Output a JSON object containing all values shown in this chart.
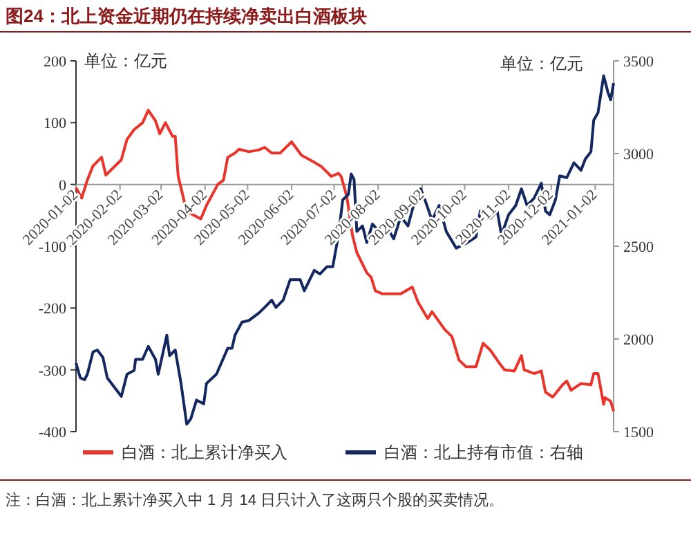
{
  "chart_data": {
    "type": "line",
    "title": "图24：北上资金近期仍在持续净卖出白酒板块",
    "annotations": [
      "单位：亿元",
      "单位：亿元",
      "注：白酒：北上累计净买入中 1 月 14 日只计入了这两只个股的买卖情况。"
    ],
    "xlim": [
      "2020-01-02",
      "2021-01-15"
    ],
    "xticks": [
      "2020-01-02",
      "2020-02-02",
      "2020-03-02",
      "2020-04-02",
      "2020-05-02",
      "2020-06-02",
      "2020-07-02",
      "2020-08-02",
      "2020-09-02",
      "2020-10-02",
      "2020-11-02",
      "2020-12-02",
      "2021-01-02"
    ],
    "ylim": [
      -400,
      200
    ],
    "yticks": [
      -400,
      -300,
      -200,
      -100,
      0,
      100,
      200
    ],
    "y2lim": [
      1500,
      3500
    ],
    "y2ticks": [
      1500,
      2000,
      2500,
      3000,
      3500
    ],
    "grid": false,
    "legend": "bottom",
    "line_style": "solid",
    "series": [
      {
        "name": "白酒：北上累计净买入",
        "color": "#e8342a",
        "x": [
          "2020-01-02",
          "2020-01-06",
          "2020-01-10",
          "2020-01-14",
          "2020-01-20",
          "2020-01-23",
          "2020-02-03",
          "2020-02-07",
          "2020-02-12",
          "2020-02-18",
          "2020-02-22",
          "2020-02-27",
          "2020-03-01",
          "2020-03-05",
          "2020-03-10",
          "2020-03-12",
          "2020-03-14",
          "2020-03-19",
          "2020-03-22",
          "2020-03-30",
          "2020-04-03",
          "2020-04-11",
          "2020-04-15",
          "2020-04-18",
          "2020-04-23",
          "2020-04-26",
          "2020-05-03",
          "2020-05-10",
          "2020-05-14",
          "2020-05-19",
          "2020-05-25",
          "2020-06-02",
          "2020-06-09",
          "2020-06-18",
          "2020-06-23",
          "2020-06-30",
          "2020-07-05",
          "2020-07-07",
          "2020-07-11",
          "2020-07-15",
          "2020-07-18",
          "2020-07-25",
          "2020-07-28",
          "2020-07-31",
          "2020-08-05",
          "2020-08-11",
          "2020-08-18",
          "2020-08-26",
          "2020-08-30",
          "2020-09-06",
          "2020-09-09",
          "2020-09-18",
          "2020-09-23",
          "2020-09-28",
          "2020-10-03",
          "2020-10-10",
          "2020-10-15",
          "2020-10-20",
          "2020-10-27",
          "2020-10-30",
          "2020-11-06",
          "2020-11-11",
          "2020-11-13",
          "2020-11-20",
          "2020-11-25",
          "2020-11-28",
          "2020-12-03",
          "2020-12-10",
          "2020-12-13",
          "2020-12-16",
          "2020-12-23",
          "2020-12-30",
          "2021-01-01",
          "2021-01-04",
          "2021-01-08",
          "2021-01-09",
          "2021-01-13",
          "2021-01-15"
        ],
        "values": [
          -5,
          -22,
          7,
          30,
          44,
          15,
          40,
          73,
          89,
          100,
          120,
          103,
          82,
          100,
          78,
          78,
          14,
          -34,
          -46,
          -56,
          -34,
          0,
          7,
          44,
          51,
          57,
          53,
          56,
          60,
          51,
          51,
          69,
          47,
          36,
          29,
          13,
          18,
          13,
          -20,
          -83,
          -110,
          -143,
          -150,
          -172,
          -177,
          -177,
          -177,
          -166,
          -190,
          -217,
          -206,
          -235,
          -246,
          -284,
          -295,
          -295,
          -257,
          -268,
          -291,
          -300,
          -302,
          -277,
          -300,
          -306,
          -302,
          -336,
          -344,
          -324,
          -318,
          -333,
          -322,
          -324,
          -306,
          -306,
          -356,
          -345,
          -351,
          -367
        ]
      },
      {
        "name": "白酒：北上持有市值：右轴",
        "color": "#14275e",
        "axis": "y2",
        "x": [
          "2020-01-02",
          "2020-01-05",
          "2020-01-08",
          "2020-01-10",
          "2020-01-14",
          "2020-01-17",
          "2020-01-21",
          "2020-01-24",
          "2020-02-03",
          "2020-02-07",
          "2020-02-12",
          "2020-02-13",
          "2020-02-18",
          "2020-02-22",
          "2020-02-27",
          "2020-02-29",
          "2020-03-06",
          "2020-03-08",
          "2020-03-12",
          "2020-03-16",
          "2020-03-20",
          "2020-03-23",
          "2020-03-27",
          "2020-04-01",
          "2020-04-03",
          "2020-04-10",
          "2020-04-18",
          "2020-04-21",
          "2020-04-23",
          "2020-04-28",
          "2020-05-03",
          "2020-05-10",
          "2020-05-14",
          "2020-05-19",
          "2020-05-22",
          "2020-05-27",
          "2020-06-01",
          "2020-06-08",
          "2020-06-11",
          "2020-06-18",
          "2020-06-22",
          "2020-06-27",
          "2020-07-01",
          "2020-07-05",
          "2020-07-08",
          "2020-07-12",
          "2020-07-14",
          "2020-07-16",
          "2020-07-18",
          "2020-07-22",
          "2020-07-25",
          "2020-07-29",
          "2020-08-05",
          "2020-08-10",
          "2020-08-13",
          "2020-08-18",
          "2020-08-23",
          "2020-08-28",
          "2020-09-01",
          "2020-09-04",
          "2020-09-09",
          "2020-09-14",
          "2020-09-19",
          "2020-09-26",
          "2020-10-04",
          "2020-10-10",
          "2020-10-13",
          "2020-10-20",
          "2020-10-25",
          "2020-10-28",
          "2020-11-02",
          "2020-11-07",
          "2020-11-11",
          "2020-11-15",
          "2020-11-20",
          "2020-11-25",
          "2020-11-28",
          "2020-12-01",
          "2020-12-05",
          "2020-12-08",
          "2020-12-13",
          "2020-12-18",
          "2020-12-23",
          "2020-12-26",
          "2020-12-30",
          "2021-01-01",
          "2021-01-04",
          "2021-01-08",
          "2021-01-11",
          "2021-01-13",
          "2021-01-15"
        ],
        "values": [
          1870,
          1790,
          1780,
          1810,
          1930,
          1940,
          1900,
          1790,
          1690,
          1810,
          1830,
          1890,
          1890,
          1960,
          1890,
          1810,
          2020,
          1910,
          1940,
          1760,
          1540,
          1570,
          1670,
          1650,
          1760,
          1810,
          1950,
          1950,
          2020,
          2090,
          2100,
          2140,
          2170,
          2210,
          2170,
          2210,
          2320,
          2320,
          2260,
          2370,
          2350,
          2390,
          2390,
          2560,
          2750,
          2780,
          2890,
          2860,
          2580,
          2610,
          2520,
          2620,
          2560,
          2580,
          2540,
          2660,
          2610,
          2750,
          2810,
          2750,
          2640,
          2720,
          2580,
          2490,
          2520,
          2550,
          2690,
          2650,
          2690,
          2560,
          2670,
          2720,
          2810,
          2720,
          2760,
          2840,
          2690,
          2670,
          2750,
          2880,
          2870,
          2950,
          2910,
          2970,
          3010,
          3180,
          3220,
          3420,
          3330,
          3290,
          3380
        ]
      }
    ]
  }
}
